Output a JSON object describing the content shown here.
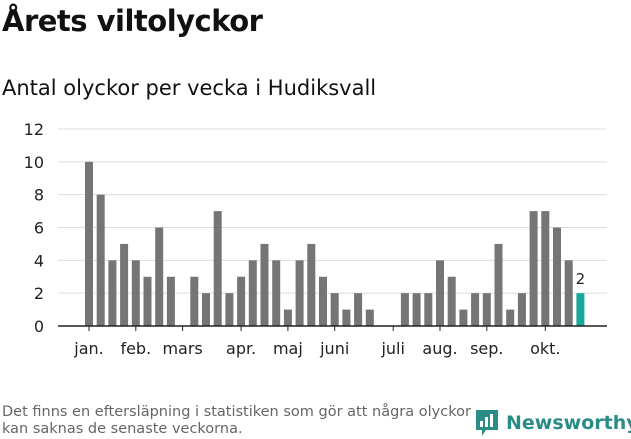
{
  "header": {
    "title": "Årets viltolyckor",
    "subtitle": "Antal olyckor per vecka i Hudiksvall"
  },
  "chart_data": {
    "type": "bar",
    "title": "Årets viltolyckor",
    "subtitle": "Antal olyckor per vecka i Hudiksvall",
    "xlabel": "",
    "ylabel": "",
    "ylim": [
      0,
      12
    ],
    "yticks": [
      0,
      2,
      4,
      6,
      8,
      10,
      12
    ],
    "grid": true,
    "categories": [
      1,
      2,
      3,
      4,
      5,
      6,
      7,
      8,
      9,
      10,
      11,
      12,
      13,
      14,
      15,
      16,
      17,
      18,
      19,
      20,
      21,
      22,
      23,
      24,
      25,
      26,
      27,
      28,
      29,
      30,
      31,
      32,
      33,
      34,
      35,
      36,
      37,
      38,
      39,
      40,
      41,
      42,
      43
    ],
    "values": [
      10,
      8,
      4,
      5,
      4,
      3,
      6,
      3,
      0,
      3,
      2,
      7,
      2,
      3,
      4,
      5,
      4,
      1,
      4,
      5,
      3,
      2,
      1,
      2,
      1,
      0,
      0,
      2,
      2,
      2,
      4,
      3,
      1,
      2,
      2,
      5,
      1,
      2,
      7,
      7,
      6,
      4,
      2
    ],
    "month_labels": [
      {
        "label": "jan.",
        "week": 1
      },
      {
        "label": "feb.",
        "week": 5
      },
      {
        "label": "mars",
        "week": 9
      },
      {
        "label": "apr.",
        "week": 14
      },
      {
        "label": "maj",
        "week": 18
      },
      {
        "label": "juni",
        "week": 22
      },
      {
        "label": "juli",
        "week": 27
      },
      {
        "label": "aug.",
        "week": 31
      },
      {
        "label": "sep.",
        "week": 35
      },
      {
        "label": "okt.",
        "week": 40
      }
    ],
    "highlight_index": 42,
    "highlight_label": "2",
    "colors": {
      "bar": "#757575",
      "highlight": "#17a89a",
      "grid": "#dddddd",
      "axis": "#222222"
    }
  },
  "footer": {
    "note": "Det finns en eftersläpning i statistiken som gör att några olyckor kan saknas de senaste veckorna.",
    "brand": "Newsworthy",
    "brand_icon": "newsworthy-logo-icon",
    "brand_color": "#2a8c86"
  }
}
